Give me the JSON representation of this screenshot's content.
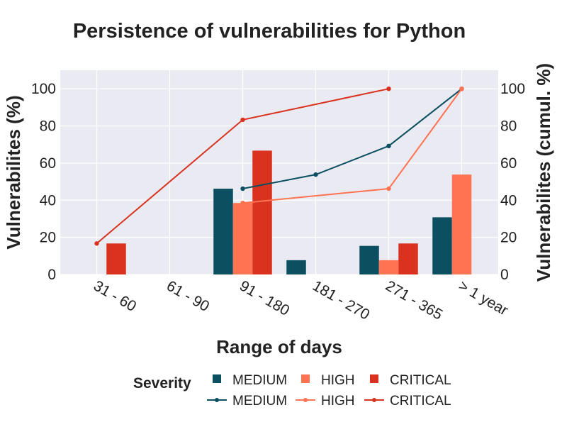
{
  "chart_data": {
    "type": "bar",
    "title": "Persistence of vulnerabilities for Python",
    "xlabel": "Range of days",
    "ylabel": "Vulnerabilites (%)",
    "y2label": "Vulnerabilites (cumul. %)",
    "categories": [
      "31 - 60",
      "61 - 90",
      "91 - 180",
      "181 - 270",
      "271 - 365",
      "> 1 year"
    ],
    "ylim": [
      0,
      110
    ],
    "y2lim": [
      0,
      110
    ],
    "yticks": [
      0,
      20,
      40,
      60,
      80,
      100
    ],
    "y2ticks": [
      0,
      20,
      40,
      60,
      80,
      100
    ],
    "bar_series": [
      {
        "name": "MEDIUM",
        "color": "#0b4f60",
        "values": [
          0,
          0,
          46.2,
          7.7,
          15.4,
          30.8
        ]
      },
      {
        "name": "HIGH",
        "color": "#ff7352",
        "values": [
          0,
          0,
          38.5,
          0,
          7.7,
          53.8
        ]
      },
      {
        "name": "CRITICAL",
        "color": "#d9321f",
        "values": [
          16.7,
          0,
          66.7,
          0,
          16.7,
          0
        ]
      }
    ],
    "line_series": [
      {
        "name": "MEDIUM",
        "color": "#0b4f60",
        "points": [
          [
            2,
            46.2
          ],
          [
            3,
            53.8
          ],
          [
            4,
            69.2
          ],
          [
            5,
            100
          ]
        ]
      },
      {
        "name": "HIGH",
        "color": "#ff7352",
        "points": [
          [
            2,
            38.5
          ],
          [
            4,
            46.2
          ],
          [
            5,
            100
          ]
        ]
      },
      {
        "name": "CRITICAL",
        "color": "#d9321f",
        "points": [
          [
            0,
            16.7
          ],
          [
            2,
            83.3
          ],
          [
            4,
            100
          ]
        ]
      }
    ],
    "legend": {
      "title": "Severity",
      "placement": "bottom-center"
    },
    "grid": true
  }
}
